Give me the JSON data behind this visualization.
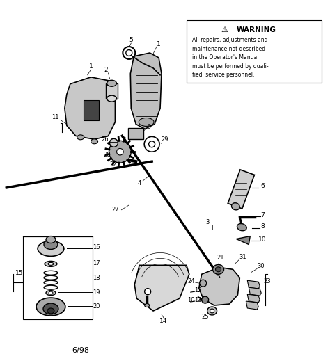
{
  "bg_color": "#ffffff",
  "warning_title": "WARNING",
  "warning_triangle": "⚠",
  "warning_text": "All repairs, adjustments and\nmaintenance not described\nin the Operator's Manual\nmust be performed by quali-\nfied  service personnel.",
  "footer_text": "6/98",
  "fig_w": 4.74,
  "fig_h": 5.19,
  "dpi": 100
}
